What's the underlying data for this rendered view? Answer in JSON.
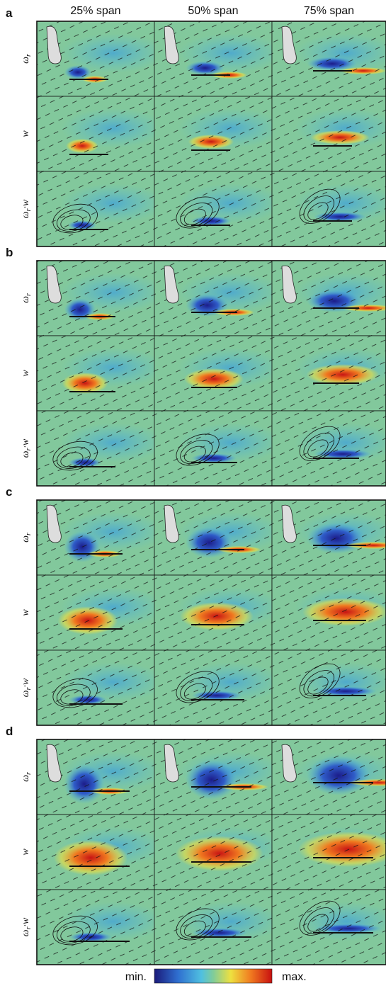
{
  "columns": [
    "25% span",
    "50% span",
    "75% span"
  ],
  "panels": [
    {
      "label": "a",
      "rows": [
        {
          "main": "ω",
          "sub": "r"
        },
        {
          "main": "w"
        },
        {
          "main": "ω",
          "sub": "r",
          "tail": "·w"
        }
      ]
    },
    {
      "label": "b",
      "rows": [
        {
          "main": "ω",
          "sub": "r"
        },
        {
          "main": "w"
        },
        {
          "main": "ω",
          "sub": "r",
          "tail": "·w"
        }
      ]
    },
    {
      "label": "c",
      "rows": [
        {
          "main": "ω",
          "sub": "r"
        },
        {
          "main": "w"
        },
        {
          "main": "ω",
          "sub": "r",
          "tail": "·w"
        }
      ]
    },
    {
      "label": "d",
      "rows": [
        {
          "main": "ω",
          "sub": "r"
        },
        {
          "main": "w"
        },
        {
          "main": "ω",
          "sub": "r",
          "tail": "·w"
        }
      ]
    }
  ],
  "colorbar": {
    "min": "min.",
    "max": "max."
  }
}
